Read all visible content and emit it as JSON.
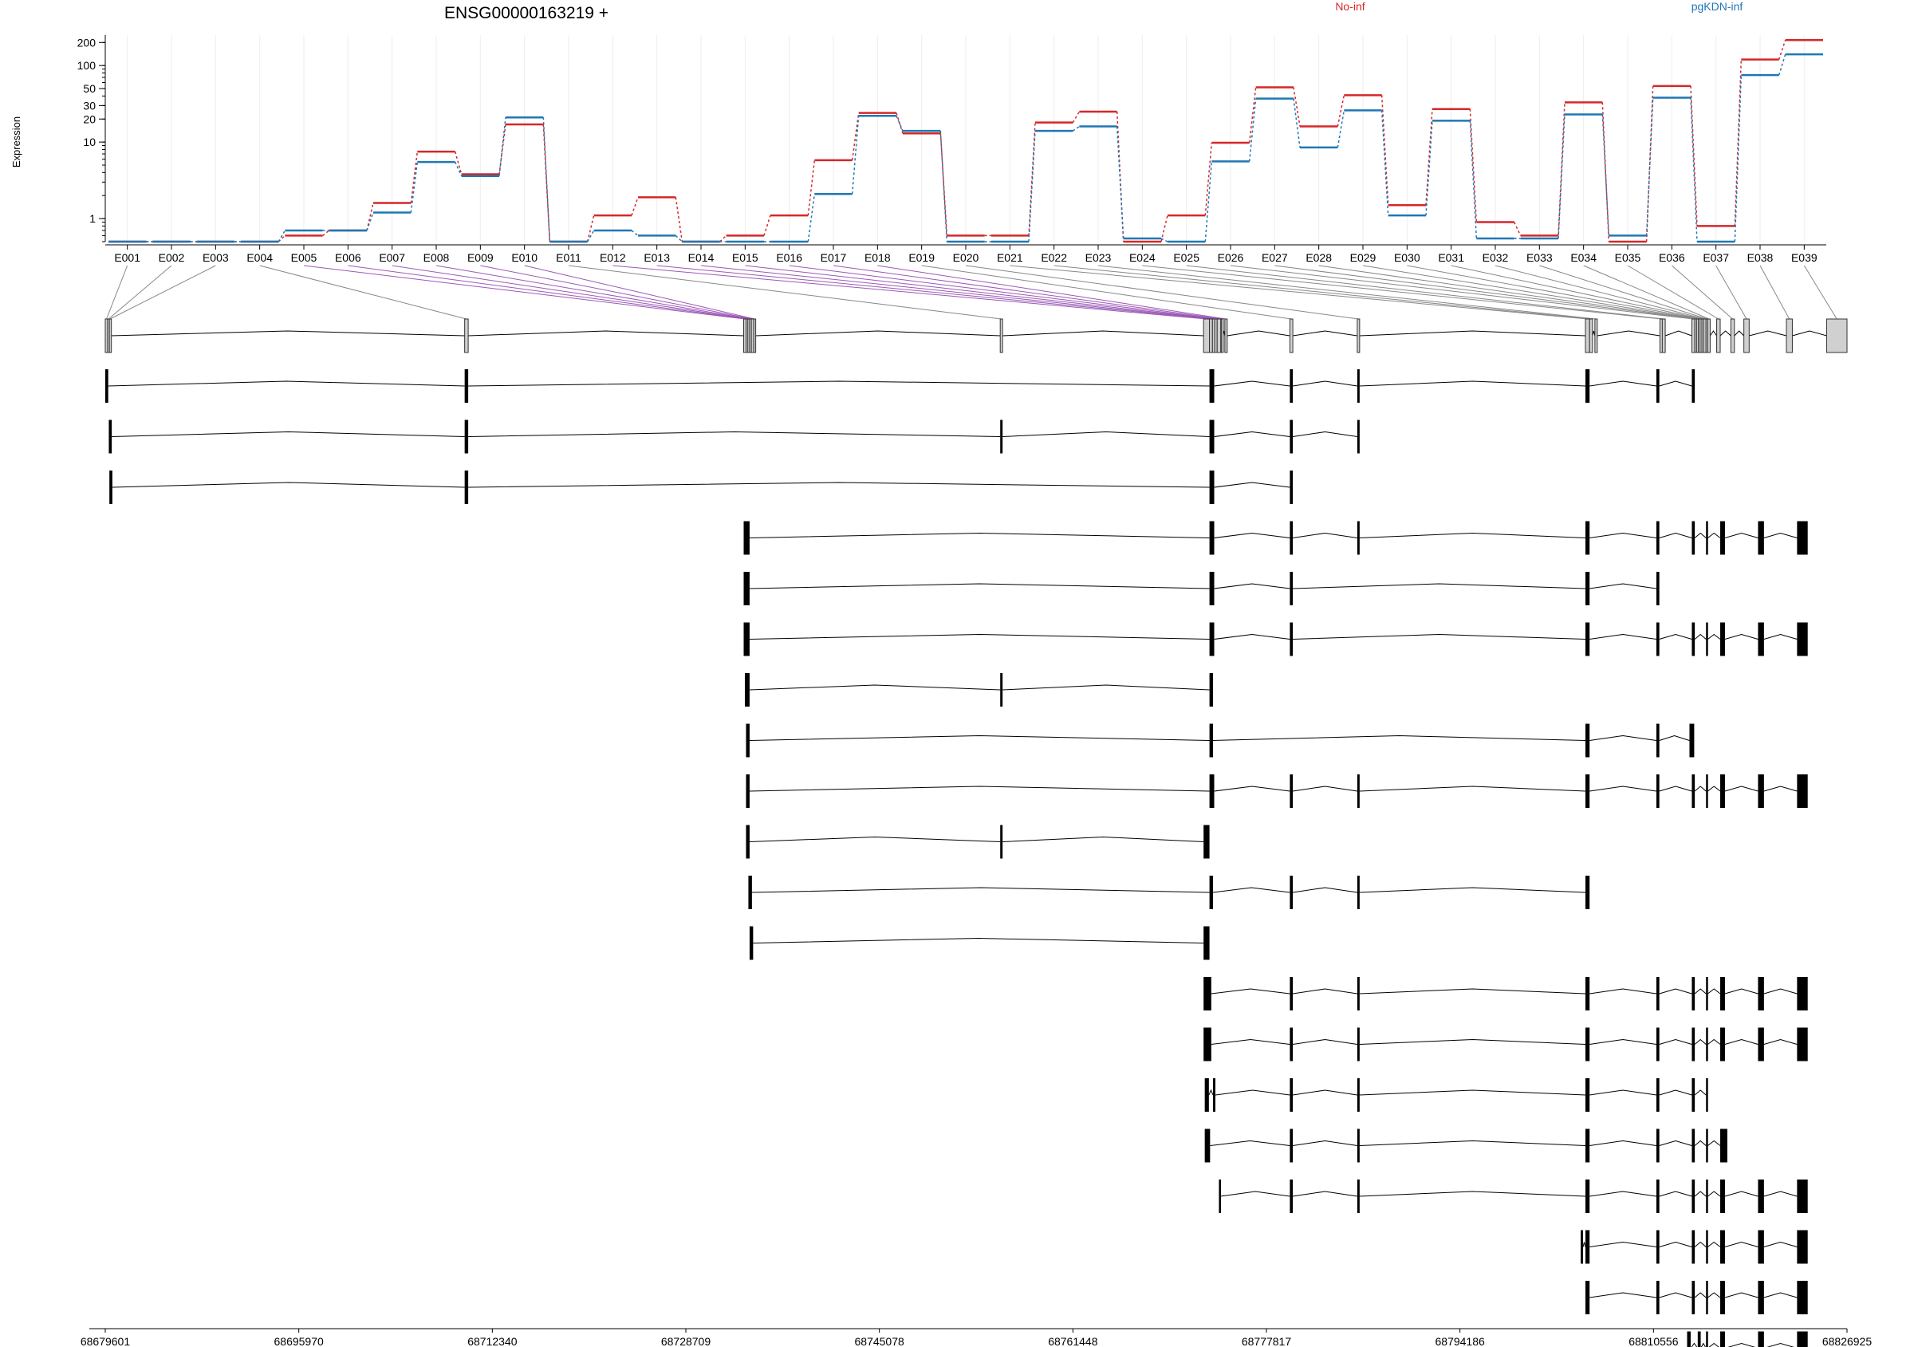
{
  "chart_data": {
    "type": "line",
    "title": "ENSG00000163219 +",
    "ylabel": "Expression",
    "yscale": "log",
    "ylim": [
      0.5,
      250
    ],
    "y_ticks": [
      1,
      10,
      20,
      30,
      50,
      100,
      200
    ],
    "grid": "faint vertical lines at exon centers",
    "legend_position": "top-right",
    "categories": [
      "E001",
      "E002",
      "E003",
      "E004",
      "E005",
      "E006",
      "E007",
      "E008",
      "E009",
      "E010",
      "E011",
      "E012",
      "E013",
      "E014",
      "E015",
      "E016",
      "E017",
      "E018",
      "E019",
      "E020",
      "E021",
      "E022",
      "E023",
      "E024",
      "E025",
      "E026",
      "E027",
      "E028",
      "E029",
      "E030",
      "E031",
      "E032",
      "E033",
      "E034",
      "E035",
      "E036",
      "E037",
      "E038",
      "E039"
    ],
    "series": [
      {
        "name": "No-inf",
        "color": "#d62728",
        "values": [
          0.5,
          0.5,
          0.5,
          0.5,
          0.6,
          0.7,
          1.6,
          7.5,
          3.8,
          17,
          0.5,
          1.1,
          1.9,
          0.5,
          0.6,
          1.1,
          5.8,
          24,
          13,
          0.6,
          0.6,
          18,
          25,
          0.5,
          1.1,
          9.8,
          52,
          16,
          41,
          1.5,
          27,
          0.9,
          0.6,
          33,
          0.5,
          54,
          0.8,
          120,
          215
        ]
      },
      {
        "name": "pgKDN-inf",
        "color": "#1f77b4",
        "values": [
          0.5,
          0.5,
          0.5,
          0.5,
          0.7,
          0.7,
          1.2,
          5.5,
          3.6,
          21,
          0.5,
          0.7,
          0.6,
          0.5,
          0.5,
          0.5,
          2.1,
          22,
          14,
          0.5,
          0.5,
          14,
          16,
          0.55,
          0.5,
          5.6,
          37,
          8.5,
          26,
          1.1,
          19,
          0.55,
          0.55,
          23,
          0.6,
          38,
          0.5,
          75,
          140
        ]
      }
    ],
    "genomic_axis": {
      "ticks": [
        "68679601",
        "68695970",
        "68712340",
        "68728709",
        "68745078",
        "68761448",
        "68777817",
        "68794186",
        "68810556",
        "68826925"
      ],
      "range": [
        68679601,
        68826925
      ]
    },
    "exon_genomic_spans": [
      [
        68679601,
        68679800
      ],
      [
        68679800,
        68679950
      ],
      [
        68679950,
        68680050
      ],
      [
        68710000,
        68710300
      ],
      [
        68733600,
        68733800
      ],
      [
        68733800,
        68733950
      ],
      [
        68733950,
        68734100
      ],
      [
        68734100,
        68734250
      ],
      [
        68734250,
        68734450
      ],
      [
        68734450,
        68734600
      ],
      [
        68755300,
        68755500
      ],
      [
        68772500,
        68773000
      ],
      [
        68773000,
        68773250
      ],
      [
        68773250,
        68773450
      ],
      [
        68773450,
        68773650
      ],
      [
        68773650,
        68773950
      ],
      [
        68774000,
        68774150
      ],
      [
        68774300,
        68774500
      ],
      [
        68779800,
        68780050
      ],
      [
        68785500,
        68785700
      ],
      [
        68804800,
        68805150
      ],
      [
        68805150,
        68805400
      ],
      [
        68805600,
        68805800
      ],
      [
        68811100,
        68811400
      ],
      [
        68811300,
        68811550
      ],
      [
        68813800,
        68814050
      ],
      [
        68814050,
        68814200
      ],
      [
        68814200,
        68814350
      ],
      [
        68814350,
        68814500
      ],
      [
        68814500,
        68814650
      ],
      [
        68814650,
        68814800
      ],
      [
        68814800,
        68815000
      ],
      [
        68815000,
        68815150
      ],
      [
        68815150,
        68815350
      ],
      [
        68815900,
        68816200
      ],
      [
        68817100,
        68817400
      ],
      [
        68818200,
        68818650
      ],
      [
        68821800,
        68822300
      ],
      [
        68825200,
        68826925
      ]
    ],
    "transcripts": [
      [
        [
          68679601,
          68679850
        ],
        [
          68710000,
          68710300
        ],
        [
          68773000,
          68773400
        ],
        [
          68779800,
          68780050
        ],
        [
          68785500,
          68785700
        ],
        [
          68804800,
          68805150
        ],
        [
          68810800,
          68811050
        ],
        [
          68813800,
          68814050
        ]
      ],
      [
        [
          68679900,
          68680150
        ],
        [
          68710000,
          68710300
        ],
        [
          68755300,
          68755500
        ],
        [
          68773000,
          68773400
        ],
        [
          68779800,
          68780050
        ],
        [
          68785500,
          68785700
        ]
      ],
      [
        [
          68679950,
          68680200
        ],
        [
          68710000,
          68710300
        ],
        [
          68773000,
          68773400
        ],
        [
          68779800,
          68780050
        ]
      ],
      [
        [
          68733600,
          68734100
        ],
        [
          68773000,
          68773400
        ],
        [
          68779800,
          68780050
        ],
        [
          68785500,
          68785700
        ],
        [
          68804800,
          68805150
        ],
        [
          68810800,
          68811050
        ],
        [
          68813800,
          68814050
        ],
        [
          68815000,
          68815150
        ],
        [
          68816200,
          68816600
        ],
        [
          68819400,
          68819900
        ],
        [
          68822700,
          68823600
        ]
      ],
      [
        [
          68733600,
          68734100
        ],
        [
          68773000,
          68773400
        ],
        [
          68779800,
          68780050
        ],
        [
          68804800,
          68805150
        ],
        [
          68810800,
          68811050
        ]
      ],
      [
        [
          68733600,
          68734100
        ],
        [
          68773000,
          68773400
        ],
        [
          68779800,
          68780050
        ],
        [
          68804800,
          68805150
        ],
        [
          68810800,
          68811050
        ],
        [
          68813800,
          68814050
        ],
        [
          68815000,
          68815150
        ],
        [
          68816200,
          68816600
        ],
        [
          68819400,
          68819900
        ],
        [
          68822700,
          68823600
        ]
      ],
      [
        [
          68733700,
          68734100
        ],
        [
          68755300,
          68755500
        ],
        [
          68773000,
          68773300
        ]
      ],
      [
        [
          68733800,
          68734100
        ],
        [
          68773000,
          68773300
        ],
        [
          68804800,
          68805150
        ],
        [
          68810800,
          68811050
        ],
        [
          68813600,
          68814000
        ]
      ],
      [
        [
          68733800,
          68734100
        ],
        [
          68773000,
          68773400
        ],
        [
          68779800,
          68780050
        ],
        [
          68785500,
          68785700
        ],
        [
          68804800,
          68805150
        ],
        [
          68810800,
          68811050
        ],
        [
          68813800,
          68814050
        ],
        [
          68815000,
          68815150
        ],
        [
          68816200,
          68816600
        ],
        [
          68819400,
          68819900
        ],
        [
          68822700,
          68823600
        ]
      ],
      [
        [
          68733800,
          68734100
        ],
        [
          68755300,
          68755500
        ],
        [
          68772500,
          68773000
        ]
      ],
      [
        [
          68734000,
          68734300
        ],
        [
          68773000,
          68773300
        ],
        [
          68779800,
          68780050
        ],
        [
          68785500,
          68785700
        ],
        [
          68804800,
          68805150
        ]
      ],
      [
        [
          68734100,
          68734400
        ],
        [
          68772500,
          68773000
        ]
      ],
      [
        [
          68772500,
          68773150
        ],
        [
          68779800,
          68780050
        ],
        [
          68785500,
          68785700
        ],
        [
          68804800,
          68805150
        ],
        [
          68810800,
          68811050
        ],
        [
          68813800,
          68814050
        ],
        [
          68815000,
          68815150
        ],
        [
          68816200,
          68816600
        ],
        [
          68819400,
          68819900
        ],
        [
          68822700,
          68823600
        ]
      ],
      [
        [
          68772500,
          68773150
        ],
        [
          68779800,
          68780050
        ],
        [
          68785500,
          68785700
        ],
        [
          68804800,
          68805150
        ],
        [
          68810800,
          68811050
        ],
        [
          68813800,
          68814050
        ],
        [
          68815000,
          68815150
        ],
        [
          68816200,
          68816600
        ],
        [
          68819400,
          68819900
        ],
        [
          68822700,
          68823600
        ]
      ],
      [
        [
          68772600,
          68772950
        ],
        [
          68773300,
          68773500
        ],
        [
          68779800,
          68780050
        ],
        [
          68785500,
          68785700
        ],
        [
          68804800,
          68805150
        ],
        [
          68810800,
          68811050
        ],
        [
          68813800,
          68814050
        ],
        [
          68815000,
          68815150
        ]
      ],
      [
        [
          68772600,
          68773050
        ],
        [
          68779800,
          68780050
        ],
        [
          68785500,
          68785700
        ],
        [
          68804800,
          68805150
        ],
        [
          68810800,
          68811050
        ],
        [
          68813800,
          68814050
        ],
        [
          68815000,
          68815150
        ],
        [
          68816200,
          68816800
        ]
      ],
      [
        [
          68773800,
          68773950
        ],
        [
          68779800,
          68780050
        ],
        [
          68785500,
          68785700
        ],
        [
          68804800,
          68805150
        ],
        [
          68810800,
          68811050
        ],
        [
          68813800,
          68814050
        ],
        [
          68815000,
          68815150
        ],
        [
          68816200,
          68816600
        ],
        [
          68819400,
          68819900
        ],
        [
          68822700,
          68823600
        ]
      ],
      [
        [
          68804400,
          68804600
        ],
        [
          68804800,
          68805150
        ],
        [
          68810800,
          68811050
        ],
        [
          68813800,
          68814050
        ],
        [
          68815000,
          68815150
        ],
        [
          68816200,
          68816600
        ],
        [
          68819400,
          68819900
        ],
        [
          68822700,
          68823600
        ]
      ],
      [
        [
          68804800,
          68805150
        ],
        [
          68810800,
          68811050
        ],
        [
          68813800,
          68814050
        ],
        [
          68815000,
          68815150
        ],
        [
          68816200,
          68816600
        ],
        [
          68819400,
          68819900
        ],
        [
          68822700,
          68823600
        ]
      ],
      [
        [
          68813400,
          68813700
        ],
        [
          68814300,
          68814550
        ],
        [
          68815000,
          68815150
        ],
        [
          68816200,
          68816600
        ],
        [
          68819400,
          68819900
        ],
        [
          68822700,
          68823600
        ]
      ]
    ]
  }
}
